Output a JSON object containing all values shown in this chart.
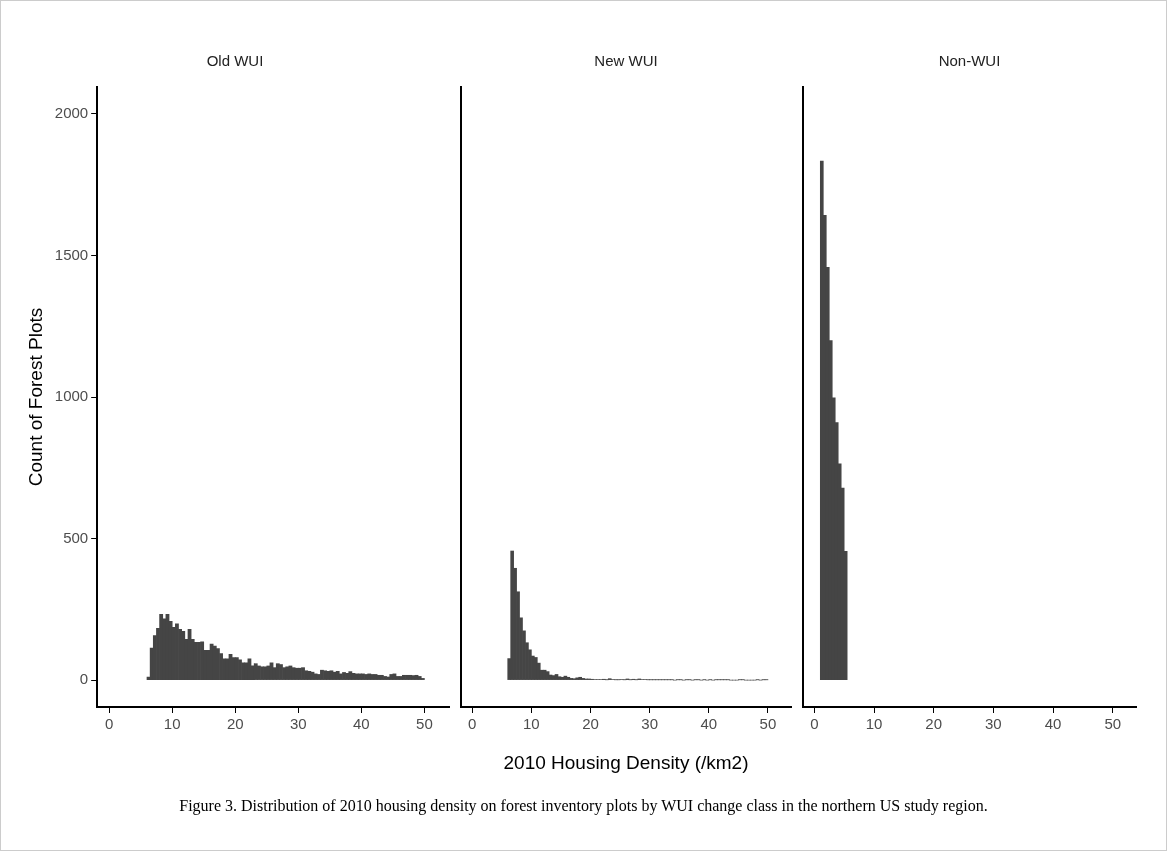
{
  "chart_data": [
    {
      "type": "histogram",
      "title": "Old WUI",
      "ylabel": "Count of Forest Plots",
      "color": "#454545",
      "xlim": [
        -1.9,
        53.9
      ],
      "ylim": [
        -95,
        2095
      ],
      "xticks": [
        0,
        10,
        20,
        30,
        40,
        50
      ],
      "yticks": [
        0,
        500,
        1000,
        1500,
        2000
      ],
      "bins": [
        6,
        6.5,
        7,
        7.5,
        8,
        8.5,
        9,
        9.5,
        10,
        10.5,
        11,
        11.5,
        12,
        12.5,
        13,
        13.5,
        14,
        14.5,
        15,
        15.5,
        16,
        16.5,
        17,
        17.5,
        18,
        18.5,
        19,
        19.5,
        20,
        20.5,
        21,
        21.5,
        22,
        22.5,
        23,
        23.5,
        24,
        24.5,
        25,
        25.5,
        26,
        26.5,
        27,
        27.5,
        28,
        28.5,
        29,
        29.5,
        30,
        30.5,
        31,
        31.5,
        32,
        32.5,
        33,
        33.5,
        34,
        34.5,
        35,
        35.5,
        36,
        36.5,
        37,
        37.5,
        38,
        38.5,
        39,
        39.5,
        40,
        40.5,
        41,
        41.5,
        42,
        42.5,
        43,
        43.5,
        44,
        44.5,
        45,
        45.5,
        46,
        46.5,
        47,
        47.5,
        48,
        48.5,
        49,
        49.5,
        50
      ],
      "values": [
        11,
        113,
        157,
        183,
        232,
        216,
        232,
        208,
        186,
        199,
        179,
        172,
        144,
        179,
        144,
        133,
        133,
        135,
        105,
        105,
        127,
        120,
        111,
        94,
        75,
        75,
        91,
        80,
        80,
        72,
        61,
        61,
        75,
        50,
        58,
        50,
        47,
        47,
        50,
        61,
        44,
        58,
        55,
        44,
        47,
        50,
        44,
        42,
        42,
        44,
        33,
        31,
        28,
        22,
        20,
        35,
        33,
        31,
        33,
        28,
        31,
        22,
        27,
        24,
        30,
        24,
        22,
        22,
        22,
        20,
        22,
        20,
        20,
        17,
        17,
        13,
        11,
        20,
        22,
        13,
        13,
        17,
        17,
        17,
        16,
        17,
        13,
        6
      ]
    },
    {
      "type": "histogram",
      "title": "New WUI",
      "xlabel": "2010 Housing Density (/km2)",
      "color": "#454545",
      "xlim": [
        -1.9,
        53.9
      ],
      "ylim": [
        -95,
        2095
      ],
      "xticks": [
        0,
        10,
        20,
        30,
        40,
        50
      ],
      "yticks": [
        0,
        500,
        1000,
        1500,
        2000
      ],
      "tick_labels": "x",
      "annotations": [
        "Figure 3. Distribution of 2010 housing density on forest inventory plots by WUI change class in the northern US study region."
      ],
      "bins": [
        6,
        6.5,
        7,
        7.5,
        8,
        8.5,
        9,
        9.5,
        10,
        10.5,
        11,
        11.5,
        12,
        12.5,
        13,
        13.5,
        14,
        14.5,
        15,
        15.5,
        16,
        16.5,
        17,
        17.5,
        18,
        18.5,
        19,
        19.5,
        20,
        20.5,
        21,
        21.5,
        22,
        22.5,
        23,
        23.5,
        24,
        24.5,
        25,
        25.5,
        26,
        26.5,
        27,
        27.5,
        28,
        28.5,
        29,
        29.5,
        30,
        30.5,
        31,
        31.5,
        32,
        32.5,
        33,
        33.5,
        34,
        34.5,
        35,
        35.5,
        36,
        36.5,
        37,
        37.5,
        38,
        38.5,
        39,
        39.5,
        40,
        40.5,
        41,
        41.5,
        42,
        42.5,
        43,
        43.5,
        44,
        44.5,
        45,
        45.5,
        46,
        46.5,
        47,
        47.5,
        48,
        48.5,
        49,
        49.5,
        50
      ],
      "values": [
        76,
        456,
        395,
        312,
        220,
        174,
        132,
        107,
        85,
        80,
        60,
        35,
        35,
        30,
        18,
        16,
        20,
        12,
        10,
        14,
        10,
        6,
        5,
        8,
        10,
        6,
        4,
        4,
        3,
        2,
        2,
        2,
        3,
        1,
        5,
        2,
        1,
        1,
        2,
        1,
        4,
        1,
        3,
        1,
        4,
        2,
        2,
        1,
        1,
        1,
        1,
        1,
        1,
        1,
        1,
        1,
        0,
        1,
        1,
        0,
        1,
        1,
        0,
        1,
        1,
        0,
        1,
        0,
        1,
        0,
        1,
        1,
        1,
        1,
        1,
        0,
        0,
        0,
        1,
        1,
        0,
        0,
        0,
        0,
        1,
        0,
        1,
        1
      ]
    },
    {
      "type": "histogram",
      "title": "Non-WUI",
      "color": "#454545",
      "xlim": [
        -1.9,
        53.9
      ],
      "ylim": [
        -95,
        2095
      ],
      "xticks": [
        0,
        10,
        20,
        30,
        40,
        50
      ],
      "yticks": [
        0,
        500,
        1000,
        1500,
        2000
      ],
      "tick_labels": "x",
      "bins": [
        1,
        1.5,
        2,
        2.5,
        3,
        3.5,
        4,
        4.5,
        5,
        5.5
      ],
      "values": [
        1833,
        1642,
        1458,
        1199,
        997,
        910,
        764,
        678,
        455
      ]
    }
  ]
}
